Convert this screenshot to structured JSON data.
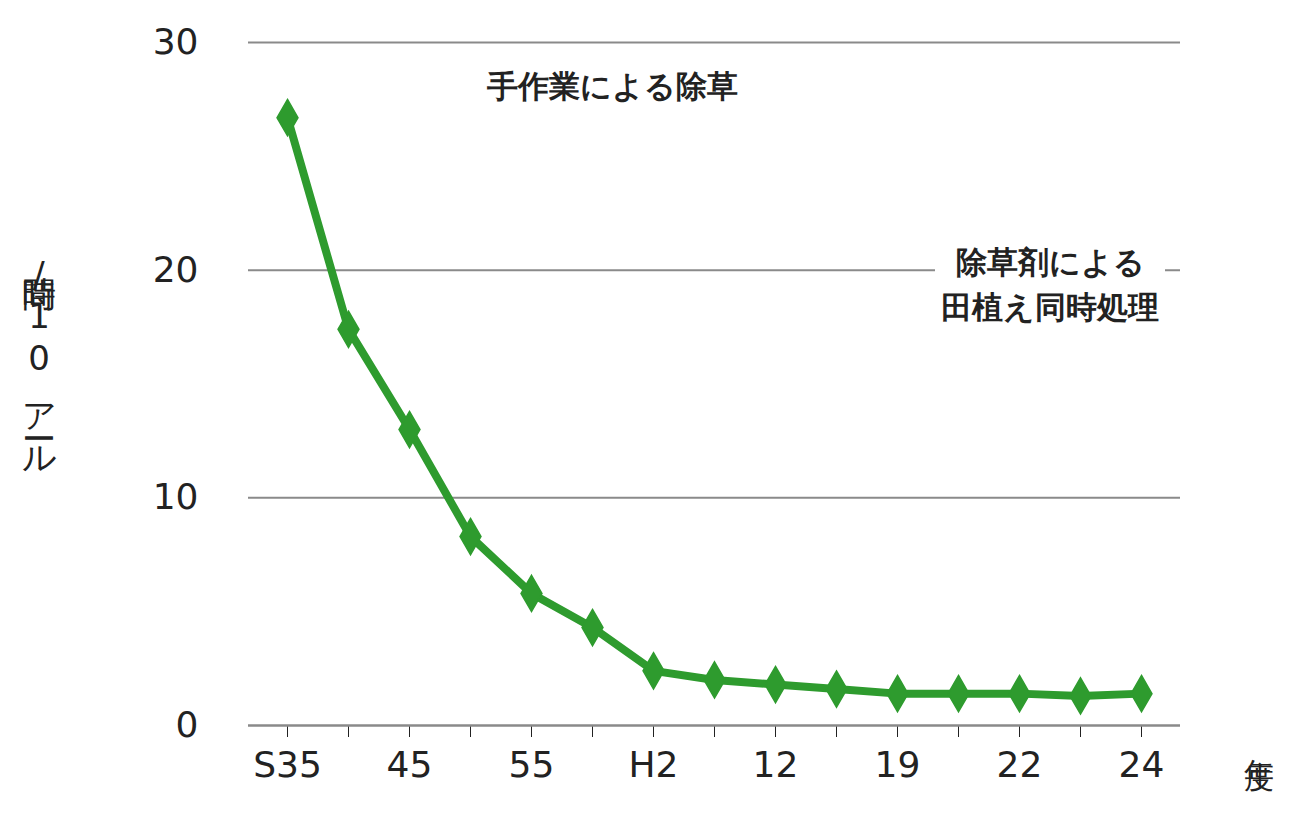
{
  "chart_data": {
    "type": "line",
    "x_label": "年度",
    "y_label": "時間/10アール",
    "categories": [
      "S35",
      null,
      "45",
      null,
      "55",
      null,
      "H2",
      null,
      "12",
      null,
      "19",
      null,
      "22",
      null,
      "24"
    ],
    "values": [
      26.7,
      17.4,
      13.0,
      8.3,
      5.8,
      4.3,
      2.4,
      2.0,
      1.8,
      1.6,
      1.4,
      1.4,
      1.4,
      1.3,
      1.4
    ],
    "color": "#2e9b2e",
    "marker": "diamond",
    "ylim": [
      0,
      30
    ],
    "yticks": [
      0,
      10,
      20,
      30
    ],
    "grid": true,
    "annotations": [
      {
        "text": "手作業による除草"
      },
      {
        "text": "除草剤による\n田植え同時処理"
      }
    ]
  }
}
